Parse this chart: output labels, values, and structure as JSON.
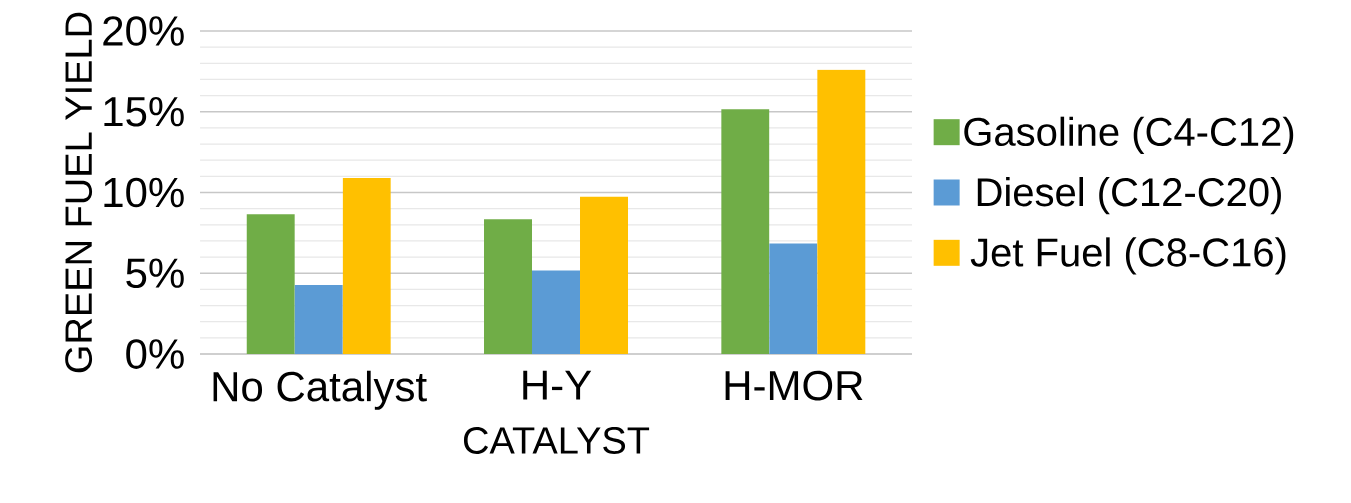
{
  "chart_data": {
    "type": "bar",
    "xlabel": "CATALYST",
    "ylabel": "GREEN FUEL YIELD",
    "categories": [
      "No Catalyst",
      "H-Y",
      "H-MOR"
    ],
    "series": [
      {
        "name": "Gasoline (C4-C12)",
        "color": "#70ad47",
        "values": [
          8.65,
          8.35,
          15.16
        ]
      },
      {
        "name": "Diesel (C12-C20)",
        "color": "#5b9bd5",
        "values": [
          4.27,
          5.17,
          6.84
        ]
      },
      {
        "name": "Jet Fuel (C8-C16)",
        "color": "#ffc000",
        "values": [
          10.9,
          9.74,
          17.6
        ]
      }
    ],
    "ylim": [
      0,
      20
    ],
    "yticks": [
      {
        "value": 0,
        "label": "0%"
      },
      {
        "value": 5,
        "label": "5%"
      },
      {
        "value": 10,
        "label": "10%"
      },
      {
        "value": 15,
        "label": "15%"
      },
      {
        "value": 20,
        "label": "20%"
      }
    ],
    "grid": "y",
    "legend": "right"
  }
}
